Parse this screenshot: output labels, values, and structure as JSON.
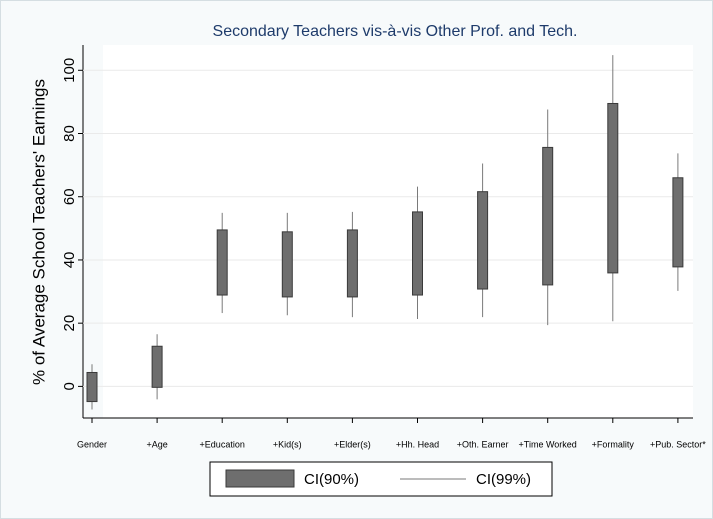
{
  "chart_data": {
    "type": "range-bar",
    "title": "Secondary Teachers vis-à-vis Other Prof. and Tech.",
    "y_label": "% of Average School Teachers' Earnings",
    "categories": [
      "Gender",
      "+Age",
      "+Education",
      "+Kid(s)",
      "+Elder(s)",
      "+Hh. Head",
      "+Oth. Earner",
      "+Time Worked",
      "+Formality",
      "+Pub. Sector*"
    ],
    "series": [
      {
        "name": "CI(90%)",
        "color": "#6e6e6e",
        "low": [
          -4.8,
          -0.3,
          28.9,
          28.3,
          28.3,
          28.9,
          30.8,
          32.1,
          35.9,
          37.8
        ],
        "high": [
          4.4,
          12.7,
          49.5,
          48.9,
          49.5,
          55.2,
          61.6,
          75.6,
          89.5,
          66.0
        ]
      },
      {
        "name": "CI(99%)",
        "color": "#7a7a7a",
        "low": [
          -7.3,
          -4.1,
          23.2,
          22.5,
          21.9,
          21.3,
          21.9,
          19.4,
          20.6,
          30.2
        ],
        "high": [
          7.0,
          16.5,
          54.9,
          54.9,
          55.2,
          63.2,
          70.5,
          87.6,
          104.8,
          73.7
        ]
      }
    ],
    "ylim": [
      -10,
      108
    ],
    "yticks": [
      0,
      20,
      40,
      60,
      80,
      100
    ],
    "grid": true
  }
}
